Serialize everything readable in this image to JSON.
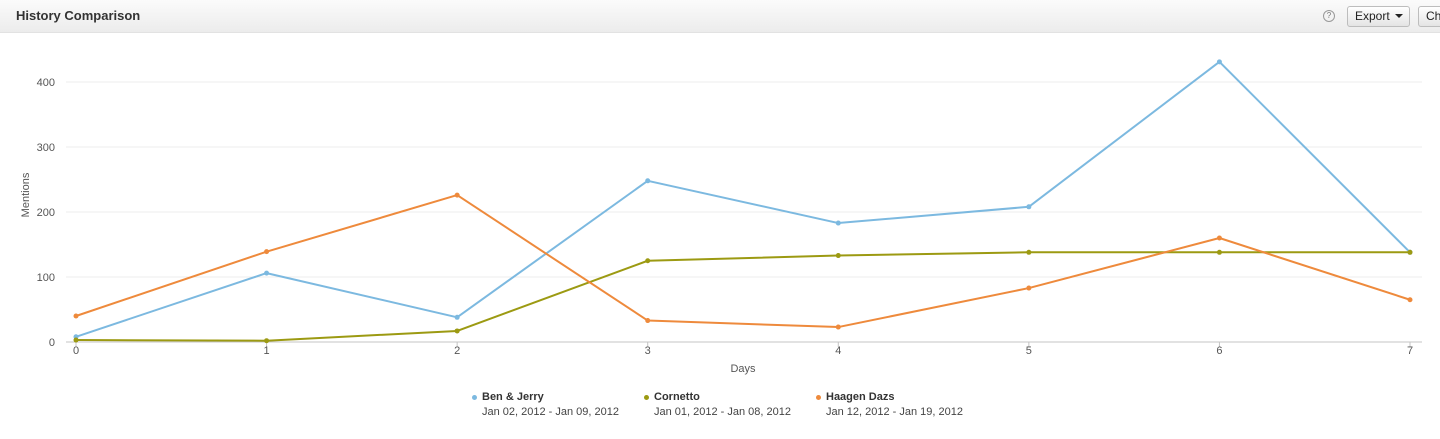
{
  "header": {
    "title": "History Comparison",
    "help_glyph": "?",
    "help_icon": "help-circle-icon",
    "export_label": "Export",
    "chart_label": "Ch"
  },
  "chart_data": {
    "type": "line",
    "xlabel": "Days",
    "ylabel": "Mentions",
    "x": [
      0,
      1,
      2,
      3,
      4,
      5,
      6,
      7
    ],
    "xlim": [
      0,
      7
    ],
    "ylim": [
      0,
      400
    ],
    "yticks": [
      0,
      100,
      200,
      300,
      400
    ],
    "grid": true,
    "legend_position": "bottom-center",
    "series": [
      {
        "name": "Ben & Jerry",
        "range": "Jan 02, 2012 - Jan 09, 2012",
        "color": "#7cb9e0",
        "values": [
          8,
          106,
          38,
          248,
          183,
          208,
          431,
          138
        ]
      },
      {
        "name": "Cornetto",
        "range": "Jan 01, 2012 - Jan 08, 2012",
        "color": "#9c9a12",
        "values": [
          3,
          2,
          17,
          125,
          133,
          138,
          138,
          138
        ]
      },
      {
        "name": "Haagen Dazs",
        "range": "Jan 12, 2012 - Jan 19, 2012",
        "color": "#ee8a3c",
        "values": [
          40,
          139,
          226,
          33,
          23,
          83,
          160,
          65
        ]
      }
    ]
  }
}
